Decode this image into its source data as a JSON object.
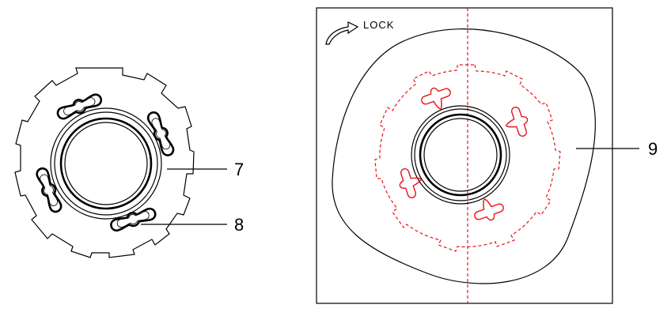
{
  "labels": {
    "part_7": "7",
    "part_8": "8",
    "part_9": "9",
    "lock": "LOCK"
  },
  "colors": {
    "line": "#000000",
    "hidden_outline": "#e8141c"
  }
}
